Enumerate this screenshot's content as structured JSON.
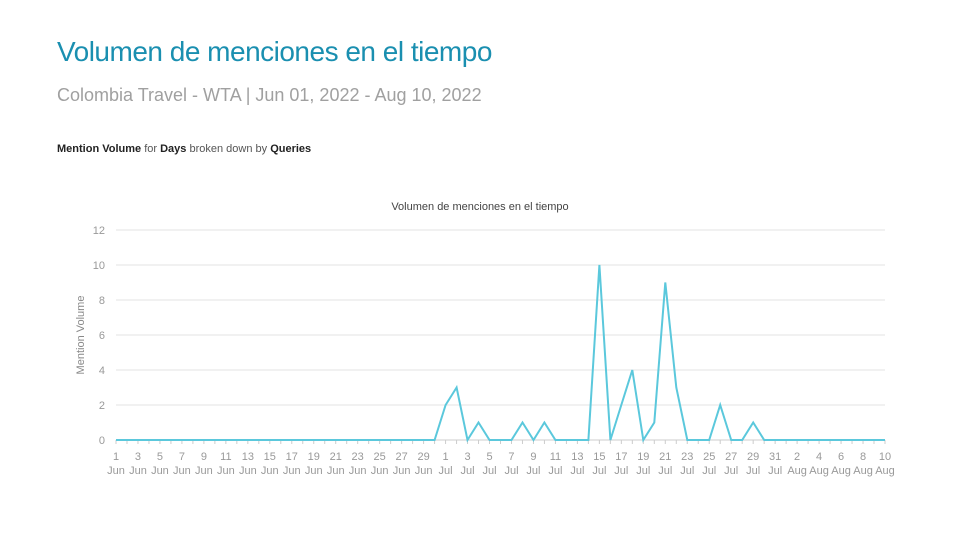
{
  "header": {
    "title": "Volumen de menciones en el tiempo",
    "subtitle": "Colombia Travel - WTA | Jun 01, 2022 - Aug 10, 2022"
  },
  "description": {
    "metric": "Mention Volume",
    "for_word": "for",
    "dimension": "Days",
    "breakdown_words": "broken down by",
    "breakdown": "Queries"
  },
  "colors": {
    "line": "#5bc8dc",
    "title": "#1a8fb0"
  },
  "chart_data": {
    "type": "line",
    "title": "Volumen de menciones en el tiempo",
    "ylabel": "Mention Volume",
    "xlabel": "",
    "ylim": [
      0,
      12
    ],
    "yticks": [
      0,
      2,
      4,
      6,
      8,
      10,
      12
    ],
    "grid": true,
    "start_date": "2022-06-01",
    "x": [
      "2022-06-01",
      "2022-06-02",
      "2022-06-03",
      "2022-06-04",
      "2022-06-05",
      "2022-06-06",
      "2022-06-07",
      "2022-06-08",
      "2022-06-09",
      "2022-06-10",
      "2022-06-11",
      "2022-06-12",
      "2022-06-13",
      "2022-06-14",
      "2022-06-15",
      "2022-06-16",
      "2022-06-17",
      "2022-06-18",
      "2022-06-19",
      "2022-06-20",
      "2022-06-21",
      "2022-06-22",
      "2022-06-23",
      "2022-06-24",
      "2022-06-25",
      "2022-06-26",
      "2022-06-27",
      "2022-06-28",
      "2022-06-29",
      "2022-06-30",
      "2022-07-01",
      "2022-07-02",
      "2022-07-03",
      "2022-07-04",
      "2022-07-05",
      "2022-07-06",
      "2022-07-07",
      "2022-07-08",
      "2022-07-09",
      "2022-07-10",
      "2022-07-11",
      "2022-07-12",
      "2022-07-13",
      "2022-07-14",
      "2022-07-15",
      "2022-07-16",
      "2022-07-17",
      "2022-07-18",
      "2022-07-19",
      "2022-07-20",
      "2022-07-21",
      "2022-07-22",
      "2022-07-23",
      "2022-07-24",
      "2022-07-25",
      "2022-07-26",
      "2022-07-27",
      "2022-07-28",
      "2022-07-29",
      "2022-07-30",
      "2022-07-31",
      "2022-08-01",
      "2022-08-02",
      "2022-08-03",
      "2022-08-04",
      "2022-08-05",
      "2022-08-06",
      "2022-08-07",
      "2022-08-08",
      "2022-08-09",
      "2022-08-10"
    ],
    "series": [
      {
        "values": [
          0,
          0,
          0,
          0,
          0,
          0,
          0,
          0,
          0,
          0,
          0,
          0,
          0,
          0,
          0,
          0,
          0,
          0,
          0,
          0,
          0,
          0,
          0,
          0,
          0,
          0,
          0,
          0,
          0,
          0,
          2,
          3,
          0,
          1,
          0,
          0,
          0,
          1,
          0,
          1,
          0,
          0,
          0,
          0,
          10,
          0,
          2,
          4,
          0,
          1,
          9,
          3,
          0,
          0,
          0,
          2,
          0,
          0,
          1,
          0,
          0,
          0,
          0,
          0,
          0,
          0,
          0,
          0,
          0,
          0,
          0
        ]
      }
    ],
    "tick_labels": [
      {
        "day": "1",
        "month": "Jun"
      },
      {
        "day": "3",
        "month": "Jun"
      },
      {
        "day": "5",
        "month": "Jun"
      },
      {
        "day": "7",
        "month": "Jun"
      },
      {
        "day": "9",
        "month": "Jun"
      },
      {
        "day": "11",
        "month": "Jun"
      },
      {
        "day": "13",
        "month": "Jun"
      },
      {
        "day": "15",
        "month": "Jun"
      },
      {
        "day": "17",
        "month": "Jun"
      },
      {
        "day": "19",
        "month": "Jun"
      },
      {
        "day": "21",
        "month": "Jun"
      },
      {
        "day": "23",
        "month": "Jun"
      },
      {
        "day": "25",
        "month": "Jun"
      },
      {
        "day": "27",
        "month": "Jun"
      },
      {
        "day": "29",
        "month": "Jun"
      },
      {
        "day": "1",
        "month": "Jul"
      },
      {
        "day": "3",
        "month": "Jul"
      },
      {
        "day": "5",
        "month": "Jul"
      },
      {
        "day": "7",
        "month": "Jul"
      },
      {
        "day": "9",
        "month": "Jul"
      },
      {
        "day": "11",
        "month": "Jul"
      },
      {
        "day": "13",
        "month": "Jul"
      },
      {
        "day": "15",
        "month": "Jul"
      },
      {
        "day": "17",
        "month": "Jul"
      },
      {
        "day": "19",
        "month": "Jul"
      },
      {
        "day": "21",
        "month": "Jul"
      },
      {
        "day": "23",
        "month": "Jul"
      },
      {
        "day": "25",
        "month": "Jul"
      },
      {
        "day": "27",
        "month": "Jul"
      },
      {
        "day": "29",
        "month": "Jul"
      },
      {
        "day": "31",
        "month": "Jul"
      },
      {
        "day": "2",
        "month": "Aug"
      },
      {
        "day": "4",
        "month": "Aug"
      },
      {
        "day": "6",
        "month": "Aug"
      },
      {
        "day": "8",
        "month": "Aug"
      },
      {
        "day": "10",
        "month": "Aug"
      }
    ]
  }
}
